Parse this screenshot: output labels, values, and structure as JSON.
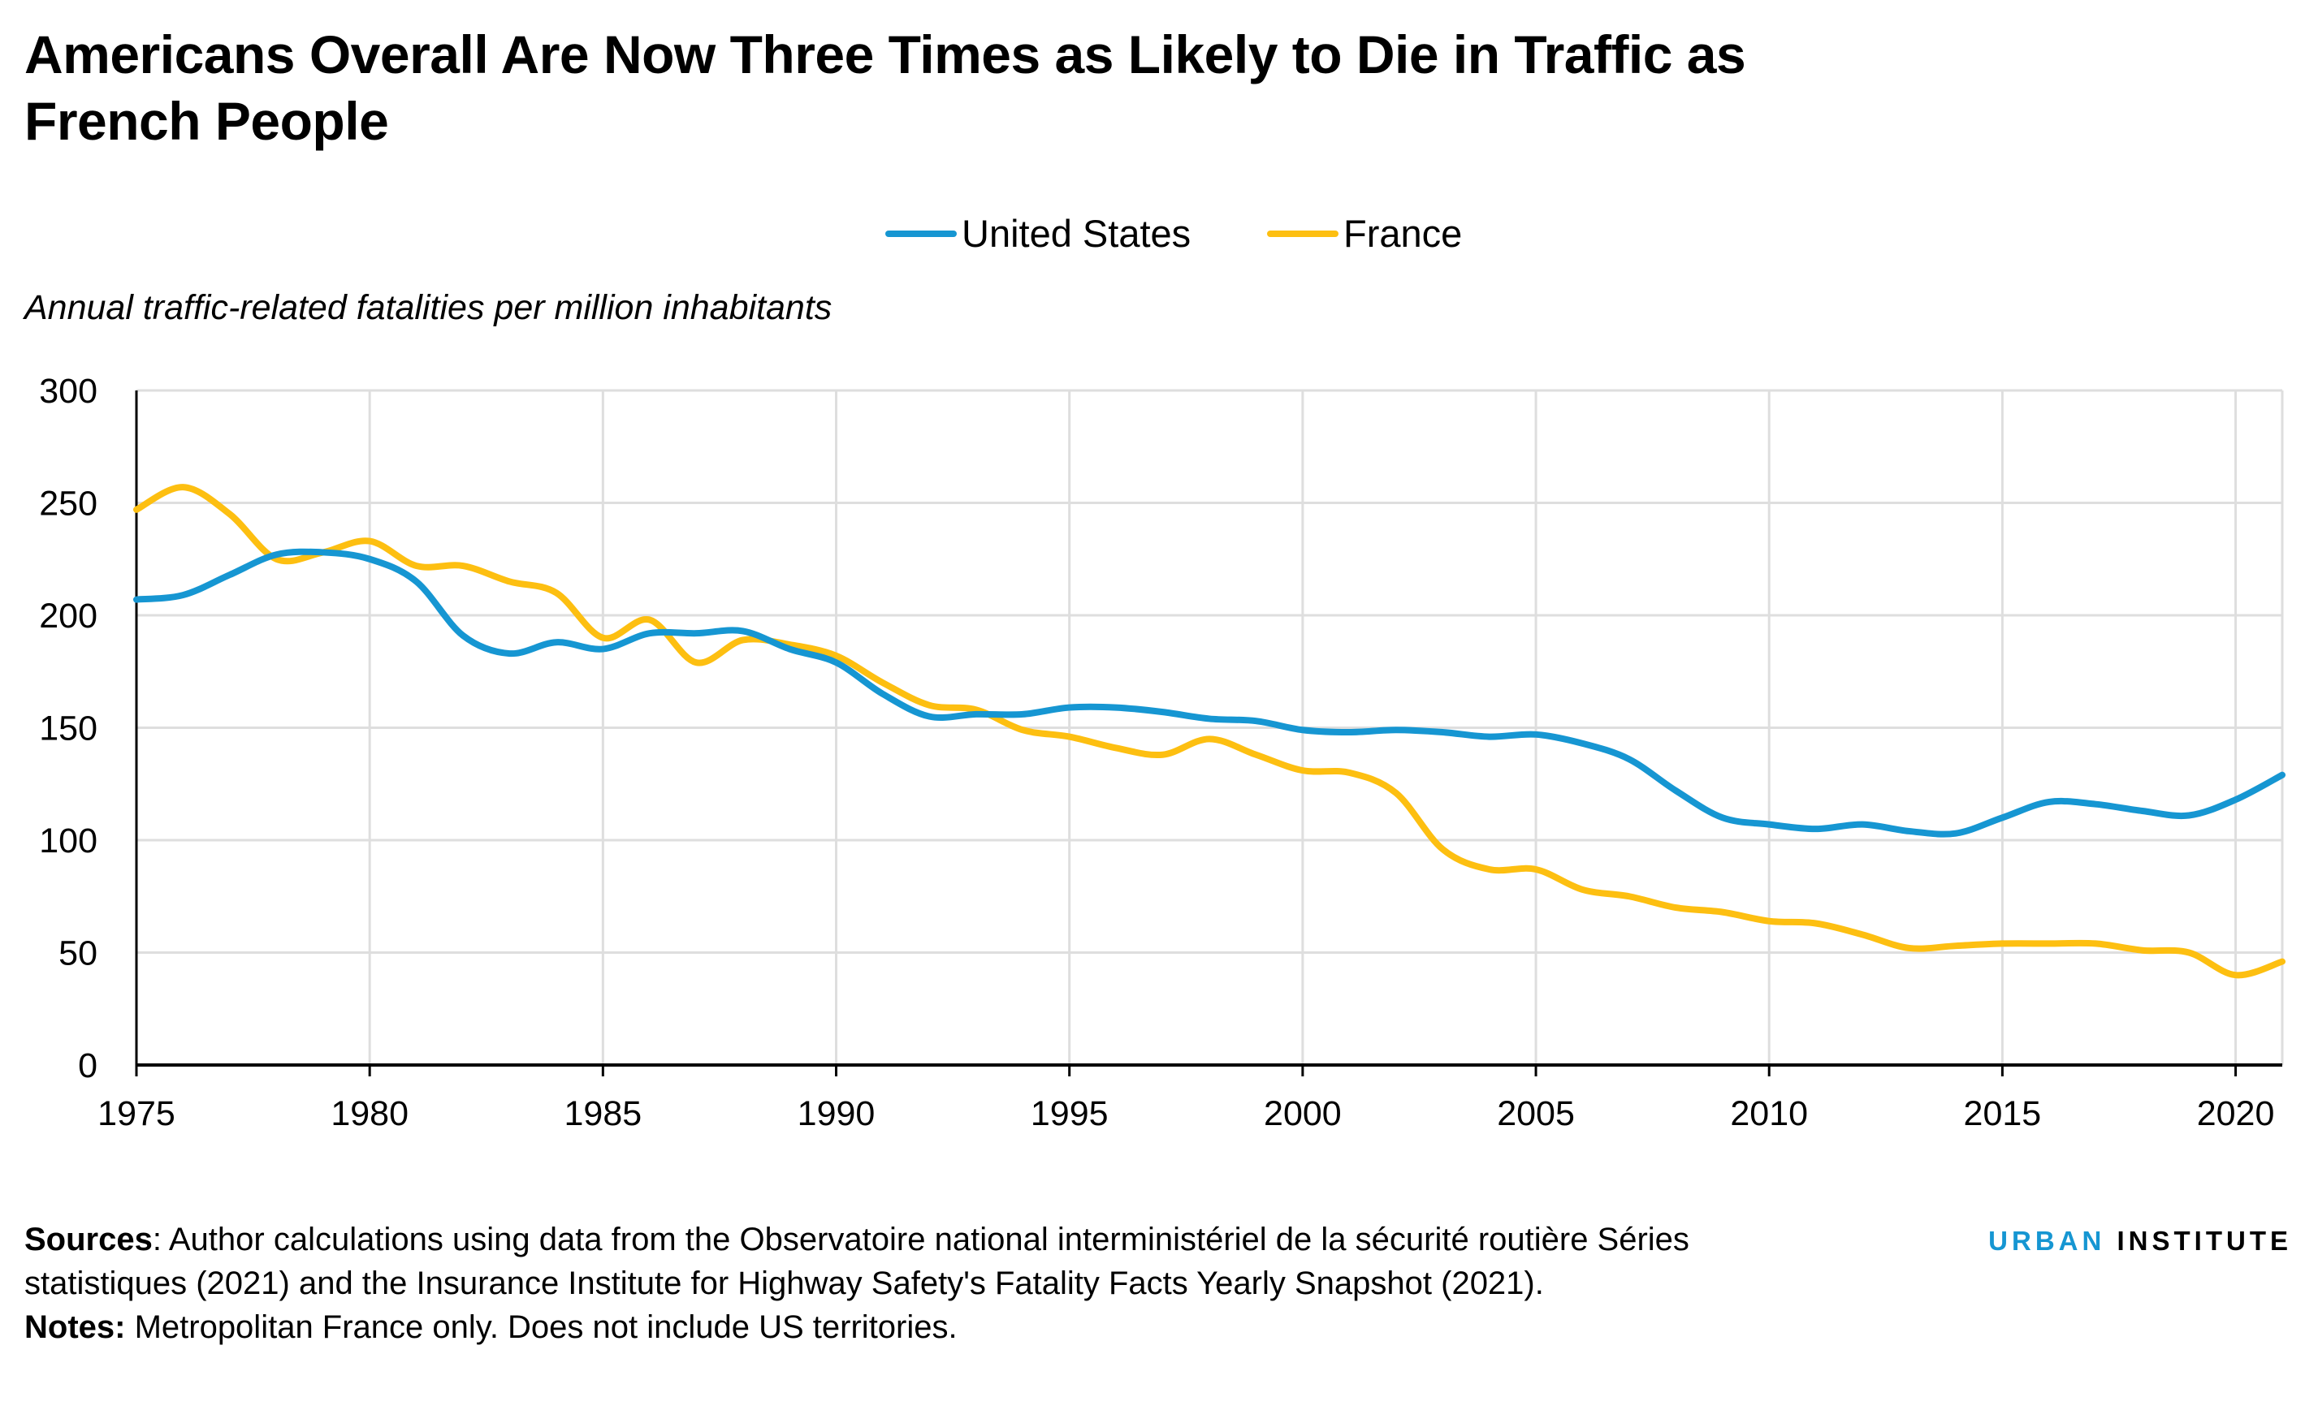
{
  "title": "Americans Overall Are Now Three Times as Likely to Die in Traffic as French People",
  "legend": [
    {
      "label": "United States",
      "color": "#1696d2"
    },
    {
      "label": "France",
      "color": "#fdbf11"
    }
  ],
  "ylabel": "Annual traffic-related fatalities per million inhabitants",
  "footer": {
    "sources_label": "Sources",
    "sources_text": ": Author calculations using data from the Observatoire national interministériel de la sécurité routière Séries statistiques (2021) and the Insurance Institute for Highway Safety's Fatality Facts Yearly Snapshot (2021).",
    "notes_label": "Notes:",
    "notes_text": " Metropolitan France only. Does not include US territories."
  },
  "brand": {
    "part1": "URBAN",
    "part2": "INSTITUTE"
  },
  "chart_data": {
    "type": "line",
    "title": "Americans Overall Are Now Three Times as Likely to Die in Traffic as French People",
    "ylabel": "Annual traffic-related fatalities per million inhabitants",
    "xlabel": "",
    "xlim": [
      1975,
      2021
    ],
    "ylim": [
      0,
      300
    ],
    "x_ticks": [
      1975,
      1980,
      1985,
      1990,
      1995,
      2000,
      2005,
      2010,
      2015,
      2020
    ],
    "y_ticks": [
      0,
      50,
      100,
      150,
      200,
      250,
      300
    ],
    "grid": true,
    "legend_position": "top-center",
    "x": [
      1975,
      1976,
      1977,
      1978,
      1979,
      1980,
      1981,
      1982,
      1983,
      1984,
      1985,
      1986,
      1987,
      1988,
      1989,
      1990,
      1991,
      1992,
      1993,
      1994,
      1995,
      1996,
      1997,
      1998,
      1999,
      2000,
      2001,
      2002,
      2003,
      2004,
      2005,
      2006,
      2007,
      2008,
      2009,
      2010,
      2011,
      2012,
      2013,
      2014,
      2015,
      2016,
      2017,
      2018,
      2019,
      2020,
      2021
    ],
    "series": [
      {
        "name": "United States",
        "color": "#1696d2",
        "values": [
          207,
          209,
          218,
          227,
          228,
          225,
          215,
          191,
          183,
          188,
          185,
          192,
          192,
          193,
          185,
          179,
          165,
          155,
          156,
          156,
          159,
          159,
          157,
          154,
          153,
          149,
          148,
          149,
          148,
          146,
          147,
          143,
          136,
          122,
          110,
          107,
          105,
          107,
          104,
          103,
          110,
          117,
          116,
          113,
          111,
          118,
          129
        ]
      },
      {
        "name": "France",
        "color": "#fdbf11",
        "values": [
          247,
          257,
          245,
          225,
          228,
          233,
          222,
          222,
          215,
          210,
          190,
          198,
          179,
          189,
          187,
          182,
          170,
          160,
          158,
          149,
          146,
          141,
          138,
          145,
          138,
          131,
          130,
          121,
          96,
          87,
          87,
          78,
          75,
          70,
          68,
          64,
          63,
          58,
          52,
          53,
          54,
          54,
          54,
          51,
          50,
          40,
          46
        ]
      }
    ]
  }
}
